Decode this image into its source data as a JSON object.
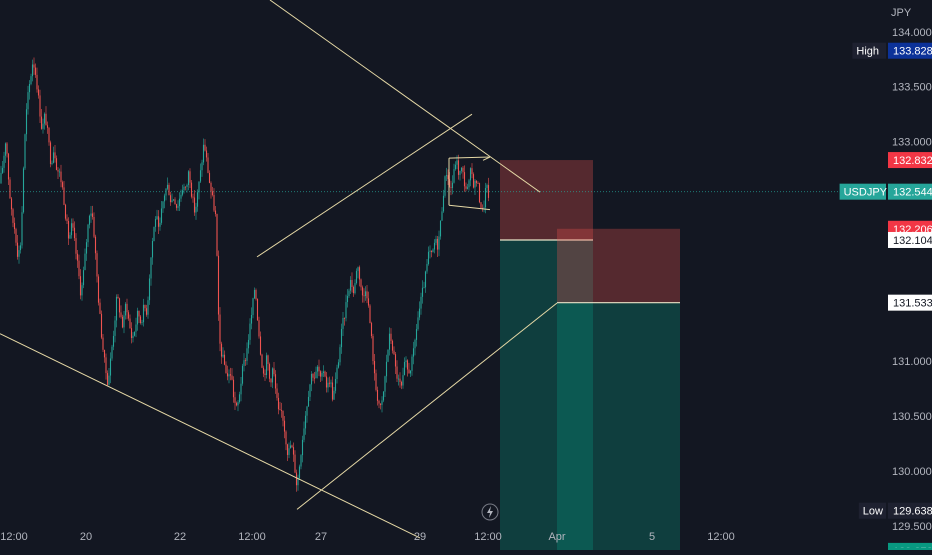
{
  "chart_data": {
    "type": "candlestick",
    "symbol": "USDJPY",
    "currency": "JPY",
    "ylim": [
      129.28,
      134.29
    ],
    "price_ticks": [
      "134.000",
      "133.500",
      "133.000",
      "131.000",
      "130.500",
      "130.000",
      "129.500"
    ],
    "time_labels": [
      "12:00",
      "20",
      "22",
      "12:00",
      "27",
      "29",
      "12:00",
      "Apr",
      "5",
      "12:00"
    ],
    "price_labels": [
      {
        "text": "High",
        "value": "133.828",
        "kind": "high"
      },
      {
        "text": "",
        "value": "132.832",
        "kind": "stop"
      },
      {
        "text": "USDJPY",
        "value": "132.544",
        "kind": "last"
      },
      {
        "text": "",
        "value": "132.206",
        "kind": "stop"
      },
      {
        "text": "",
        "value": "132.104",
        "kind": "entry"
      },
      {
        "text": "",
        "value": "131.533",
        "kind": "entry"
      },
      {
        "text": "Low",
        "value": "129.638",
        "kind": "low"
      },
      {
        "text": "",
        "value": "129.272",
        "kind": "target"
      },
      {
        "text": "",
        "value": "129.228",
        "kind": "target"
      }
    ],
    "close_path": [
      [
        0,
        132.62
      ],
      [
        3,
        132.8
      ],
      [
        6,
        133.05
      ],
      [
        9,
        132.6
      ],
      [
        12,
        132.3
      ],
      [
        15,
        132.2
      ],
      [
        18,
        131.95
      ],
      [
        21,
        132.1
      ],
      [
        24,
        132.9
      ],
      [
        27,
        133.35
      ],
      [
        30,
        133.55
      ],
      [
        33,
        133.75
      ],
      [
        36,
        133.6
      ],
      [
        39,
        133.35
      ],
      [
        42,
        133.1
      ],
      [
        45,
        133.25
      ],
      [
        48,
        133.05
      ],
      [
        51,
        132.8
      ],
      [
        54,
        132.95
      ],
      [
        57,
        132.75
      ],
      [
        60,
        132.7
      ],
      [
        63,
        132.55
      ],
      [
        66,
        132.3
      ],
      [
        69,
        132.1
      ],
      [
        72,
        132.25
      ],
      [
        75,
        132.05
      ],
      [
        78,
        131.85
      ],
      [
        81,
        131.6
      ],
      [
        84,
        131.85
      ],
      [
        87,
        132.15
      ],
      [
        90,
        132.4
      ],
      [
        93,
        132.3
      ],
      [
        96,
        131.9
      ],
      [
        99,
        131.5
      ],
      [
        102,
        131.2
      ],
      [
        105,
        130.95
      ],
      [
        108,
        130.8
      ],
      [
        111,
        131.05
      ],
      [
        114,
        131.3
      ],
      [
        117,
        131.6
      ],
      [
        120,
        131.45
      ],
      [
        123,
        131.3
      ],
      [
        126,
        131.55
      ],
      [
        129,
        131.35
      ],
      [
        132,
        131.2
      ],
      [
        135,
        131.3
      ],
      [
        138,
        131.45
      ],
      [
        141,
        131.35
      ],
      [
        144,
        131.5
      ],
      [
        147,
        131.45
      ],
      [
        150,
        131.85
      ],
      [
        153,
        132.15
      ],
      [
        156,
        132.35
      ],
      [
        159,
        132.15
      ],
      [
        162,
        132.4
      ],
      [
        165,
        132.55
      ],
      [
        168,
        132.6
      ],
      [
        171,
        132.45
      ],
      [
        174,
        132.5
      ],
      [
        177,
        132.4
      ],
      [
        180,
        132.5
      ],
      [
        183,
        132.6
      ],
      [
        186,
        132.55
      ],
      [
        189,
        132.75
      ],
      [
        192,
        132.5
      ],
      [
        195,
        132.35
      ],
      [
        198,
        132.55
      ],
      [
        201,
        132.75
      ],
      [
        204,
        133.0
      ],
      [
        207,
        132.8
      ],
      [
        210,
        132.6
      ],
      [
        213,
        132.45
      ],
      [
        216,
        132.3
      ],
      [
        219,
        131.2
      ],
      [
        222,
        131.05
      ],
      [
        225,
        130.95
      ],
      [
        228,
        130.85
      ],
      [
        231,
        130.9
      ],
      [
        234,
        130.65
      ],
      [
        237,
        130.55
      ],
      [
        240,
        130.75
      ],
      [
        243,
        130.95
      ],
      [
        246,
        131.05
      ],
      [
        249,
        131.25
      ],
      [
        252,
        131.45
      ],
      [
        255,
        131.7
      ],
      [
        258,
        131.35
      ],
      [
        261,
        131.05
      ],
      [
        264,
        130.85
      ],
      [
        267,
        131.05
      ],
      [
        270,
        130.8
      ],
      [
        273,
        130.95
      ],
      [
        276,
        130.7
      ],
      [
        279,
        130.5
      ],
      [
        282,
        130.55
      ],
      [
        285,
        130.35
      ],
      [
        288,
        130.15
      ],
      [
        291,
        130.25
      ],
      [
        294,
        130.1
      ],
      [
        297,
        129.85
      ],
      [
        300,
        130.1
      ],
      [
        303,
        130.35
      ],
      [
        306,
        130.55
      ],
      [
        309,
        130.75
      ],
      [
        312,
        130.9
      ],
      [
        315,
        130.85
      ],
      [
        318,
        130.95
      ],
      [
        321,
        130.8
      ],
      [
        324,
        130.95
      ],
      [
        327,
        130.75
      ],
      [
        330,
        130.85
      ],
      [
        333,
        130.65
      ],
      [
        336,
        130.85
      ],
      [
        339,
        131.05
      ],
      [
        342,
        131.3
      ],
      [
        345,
        131.45
      ],
      [
        348,
        131.65
      ],
      [
        351,
        131.75
      ],
      [
        354,
        131.6
      ],
      [
        357,
        131.9
      ],
      [
        360,
        131.75
      ],
      [
        363,
        131.55
      ],
      [
        366,
        131.7
      ],
      [
        369,
        131.45
      ],
      [
        372,
        131.15
      ],
      [
        375,
        130.8
      ],
      [
        378,
        130.65
      ],
      [
        381,
        130.55
      ],
      [
        384,
        130.75
      ],
      [
        387,
        131.05
      ],
      [
        390,
        131.25
      ],
      [
        393,
        131.1
      ],
      [
        396,
        130.9
      ],
      [
        399,
        130.8
      ],
      [
        402,
        130.75
      ],
      [
        405,
        131.0
      ],
      [
        408,
        130.9
      ],
      [
        411,
        130.95
      ],
      [
        414,
        131.1
      ],
      [
        417,
        131.35
      ],
      [
        420,
        131.5
      ],
      [
        423,
        131.65
      ],
      [
        426,
        131.8
      ],
      [
        429,
        132.0
      ],
      [
        432,
        131.95
      ],
      [
        435,
        132.1
      ],
      [
        438,
        132.05
      ],
      [
        441,
        132.3
      ],
      [
        444,
        132.6
      ],
      [
        447,
        132.75
      ],
      [
        450,
        132.55
      ],
      [
        453,
        132.65
      ],
      [
        456,
        132.85
      ],
      [
        459,
        132.7
      ],
      [
        462,
        132.75
      ],
      [
        465,
        132.6
      ],
      [
        468,
        132.55
      ],
      [
        471,
        132.75
      ],
      [
        474,
        132.6
      ],
      [
        477,
        132.65
      ],
      [
        480,
        132.45
      ],
      [
        483,
        132.35
      ],
      [
        486,
        132.6
      ],
      [
        489,
        132.5
      ]
    ],
    "trendlines": [
      {
        "from": [
          270,
          134.29
        ],
        "to": [
          540,
          132.54
        ]
      },
      {
        "from": [
          0,
          131.25
        ],
        "to": [
          420,
          129.39
        ]
      },
      {
        "from": [
          257,
          131.95
        ],
        "to": [
          472,
          133.25
        ]
      },
      {
        "from": [
          297,
          129.65
        ],
        "to": [
          557,
          131.53
        ]
      },
      {
        "from": [
          449,
          132.85
        ],
        "to": [
          449,
          132.42
        ]
      },
      {
        "from": [
          449,
          132.85
        ],
        "to": [
          490,
          132.86
        ]
      },
      {
        "from": [
          449,
          132.42
        ],
        "to": [
          490,
          132.38
        ]
      },
      {
        "from": [
          483,
          132.83
        ],
        "to": [
          490,
          132.86
        ]
      }
    ],
    "positions": [
      {
        "x1": 500,
        "x2": 593,
        "stop": 132.832,
        "entry": 132.104,
        "target": 129.272
      },
      {
        "x1": 557,
        "x2": 680,
        "stop": 132.206,
        "entry": 131.533,
        "target": 129.228
      }
    ],
    "colors": {
      "background": "#131722",
      "up": "#26a69a",
      "down": "#ef5350",
      "trendline": "#e6d9a6",
      "stop_zone": "#ef5350",
      "target_zone": "#089981",
      "high_label": "#0c3299",
      "last_label": "#26a69a",
      "stop_label": "#f23645",
      "target_label": "#089981"
    },
    "icons": {
      "replay": "lightning-icon"
    }
  }
}
